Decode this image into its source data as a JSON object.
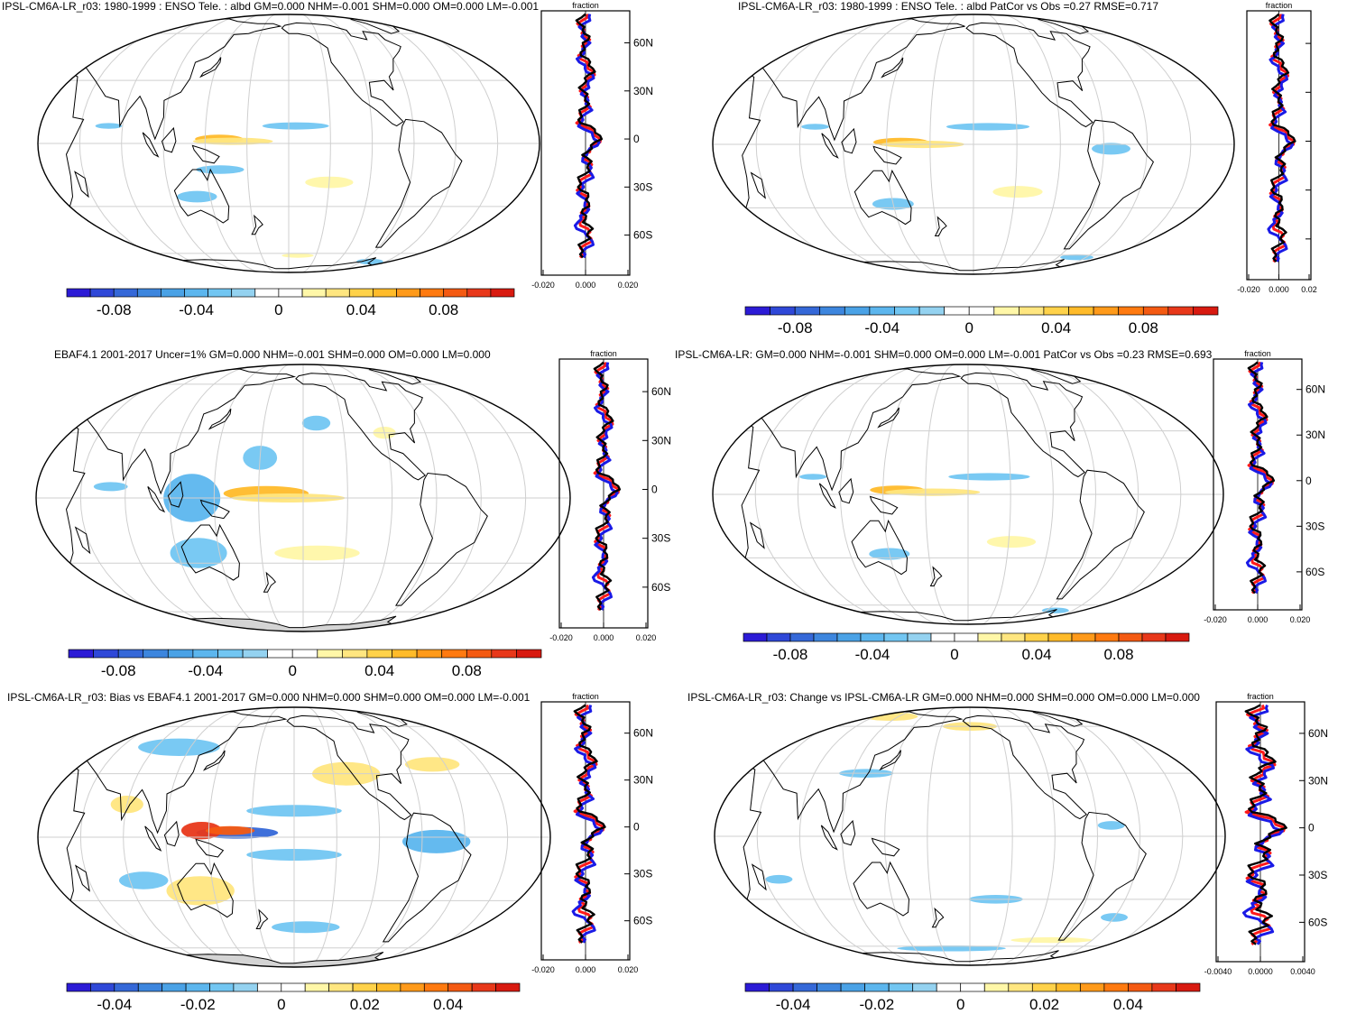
{
  "panels": [
    {
      "title": "IPSL-CM6A-LR_r03: 1980-1999 : ENSO Tele. : albd GM=0.000 NHM=-0.001 SHM=0.000 OM=0.000 LM=-0.001",
      "profile_label": "fraction",
      "lat_ticks": [
        "60N",
        "30N",
        "0",
        "30S",
        "60S"
      ],
      "x_ticks": [
        "-0.020",
        "0.000",
        "0.020"
      ],
      "colorbar_ticks": [
        "-0.08",
        "-0.04",
        "0",
        "0.04",
        "0.08"
      ]
    },
    {
      "title": "IPSL-CM6A-LR_r03: 1980-1999 : ENSO Tele. : albd PatCor vs Obs =0.27 RMSE=0.717",
      "profile_label": "fraction",
      "lat_ticks": [
        "",
        "",
        "",
        "",
        ""
      ],
      "x_ticks": [
        "-0.020",
        "0.000",
        "0.02"
      ],
      "colorbar_ticks": [
        "-0.08",
        "-0.04",
        "0",
        "0.04",
        "0.08"
      ]
    },
    {
      "title": "EBAF4.1 2001-2017 Uncer=1% GM=0.000 NHM=-0.001 SHM=0.000 OM=0.000 LM=0.000",
      "profile_label": "fraction",
      "lat_ticks": [
        "60N",
        "30N",
        "0",
        "30S",
        "60S"
      ],
      "x_ticks": [
        "-0.020",
        "0.000",
        "0.020"
      ],
      "colorbar_ticks": [
        "-0.08",
        "-0.04",
        "0",
        "0.04",
        "0.08"
      ]
    },
    {
      "title": "IPSL-CM6A-LR: GM=0.000 NHM=-0.001 SHM=0.000 OM=0.000 LM=-0.001 PatCor vs Obs =0.23 RMSE=0.693",
      "profile_label": "fraction",
      "lat_ticks": [
        "60N",
        "30N",
        "0",
        "30S",
        "60S"
      ],
      "x_ticks": [
        "-0.020",
        "0.000",
        "0.020"
      ],
      "colorbar_ticks": [
        "-0.08",
        "-0.04",
        "0",
        "0.04",
        "0.08"
      ]
    },
    {
      "title": "IPSL-CM6A-LR_r03: Bias vs EBAF4.1 2001-2017 GM=0.000 NHM=0.000 SHM=0.000 OM=0.000 LM=-0.001",
      "profile_label": "fraction",
      "lat_ticks": [
        "60N",
        "30N",
        "0",
        "30S",
        "60S"
      ],
      "x_ticks": [
        "-0.020",
        "0.000",
        "0.020"
      ],
      "colorbar_ticks": [
        "-0.04",
        "-0.02",
        "0",
        "0.02",
        "0.04"
      ]
    },
    {
      "title": "IPSL-CM6A-LR_r03: Change vs IPSL-CM6A-LR GM=0.000 NHM=0.000 SHM=0.000 OM=0.000 LM=0.000",
      "profile_label": "fraction",
      "lat_ticks": [
        "60N",
        "30N",
        "0",
        "30S",
        "60S"
      ],
      "x_ticks": [
        "-0.0040",
        "0.0000",
        "0.0040"
      ],
      "colorbar_ticks": [
        "-0.04",
        "-0.02",
        "0",
        "0.02",
        "0.04"
      ]
    }
  ],
  "colors": {
    "palette": [
      "#2c1bd6",
      "#2f48d8",
      "#3568d8",
      "#3d86de",
      "#4aa2e6",
      "#5cb6ee",
      "#72c6f2",
      "#94d2f0",
      "#ffffff",
      "#ffffff",
      "#fff7a8",
      "#ffe680",
      "#ffd24a",
      "#ffbb2a",
      "#ff9a1a",
      "#ff7a10",
      "#f45a12",
      "#e8381a",
      "#d81a10"
    ],
    "profile_red": "#ff1a1a",
    "profile_blue": "#1a1ae6",
    "profile_black": "#000000",
    "land_outline": "#000000",
    "grid": "#cfcfcf",
    "missing": "#d4d4d4"
  }
}
